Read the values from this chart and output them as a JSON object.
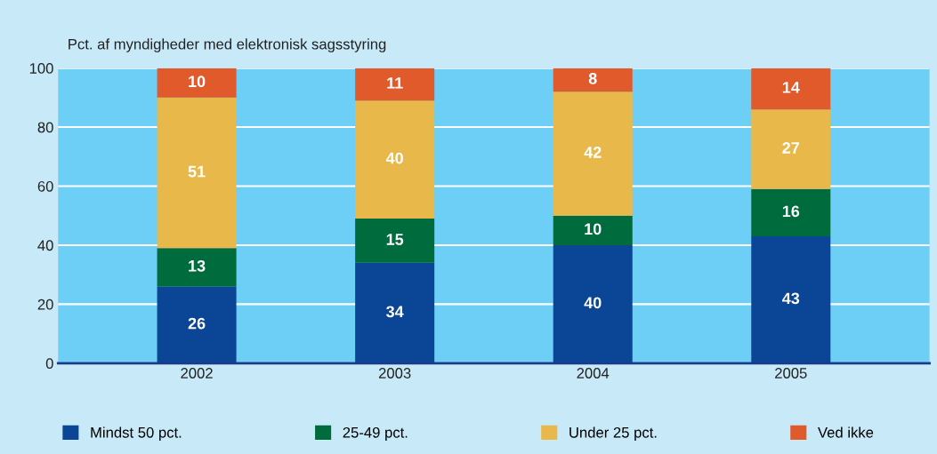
{
  "chart_data": {
    "type": "bar",
    "stacked": true,
    "ylabel": "Pct. af myndigheder med elektronisk sagsstyring",
    "categories": [
      "2002",
      "2003",
      "2004",
      "2005"
    ],
    "series": [
      {
        "name": "Mindst 50 pct.",
        "color": "#0b4595",
        "values": [
          26,
          34,
          40,
          43
        ]
      },
      {
        "name": "25-49 pct.",
        "color": "#006b3c",
        "values": [
          13,
          15,
          10,
          16
        ]
      },
      {
        "name": "Under 25 pct.",
        "color": "#e8b84a",
        "values": [
          51,
          40,
          42,
          27
        ]
      },
      {
        "name": "Ved ikke",
        "color": "#e05a2b",
        "values": [
          10,
          11,
          8,
          14
        ]
      }
    ],
    "ylim": [
      0,
      100
    ],
    "yticks": [
      0,
      20,
      40,
      60,
      80,
      100
    ],
    "grid": "y",
    "legend": "bottom",
    "data_labels": true
  }
}
